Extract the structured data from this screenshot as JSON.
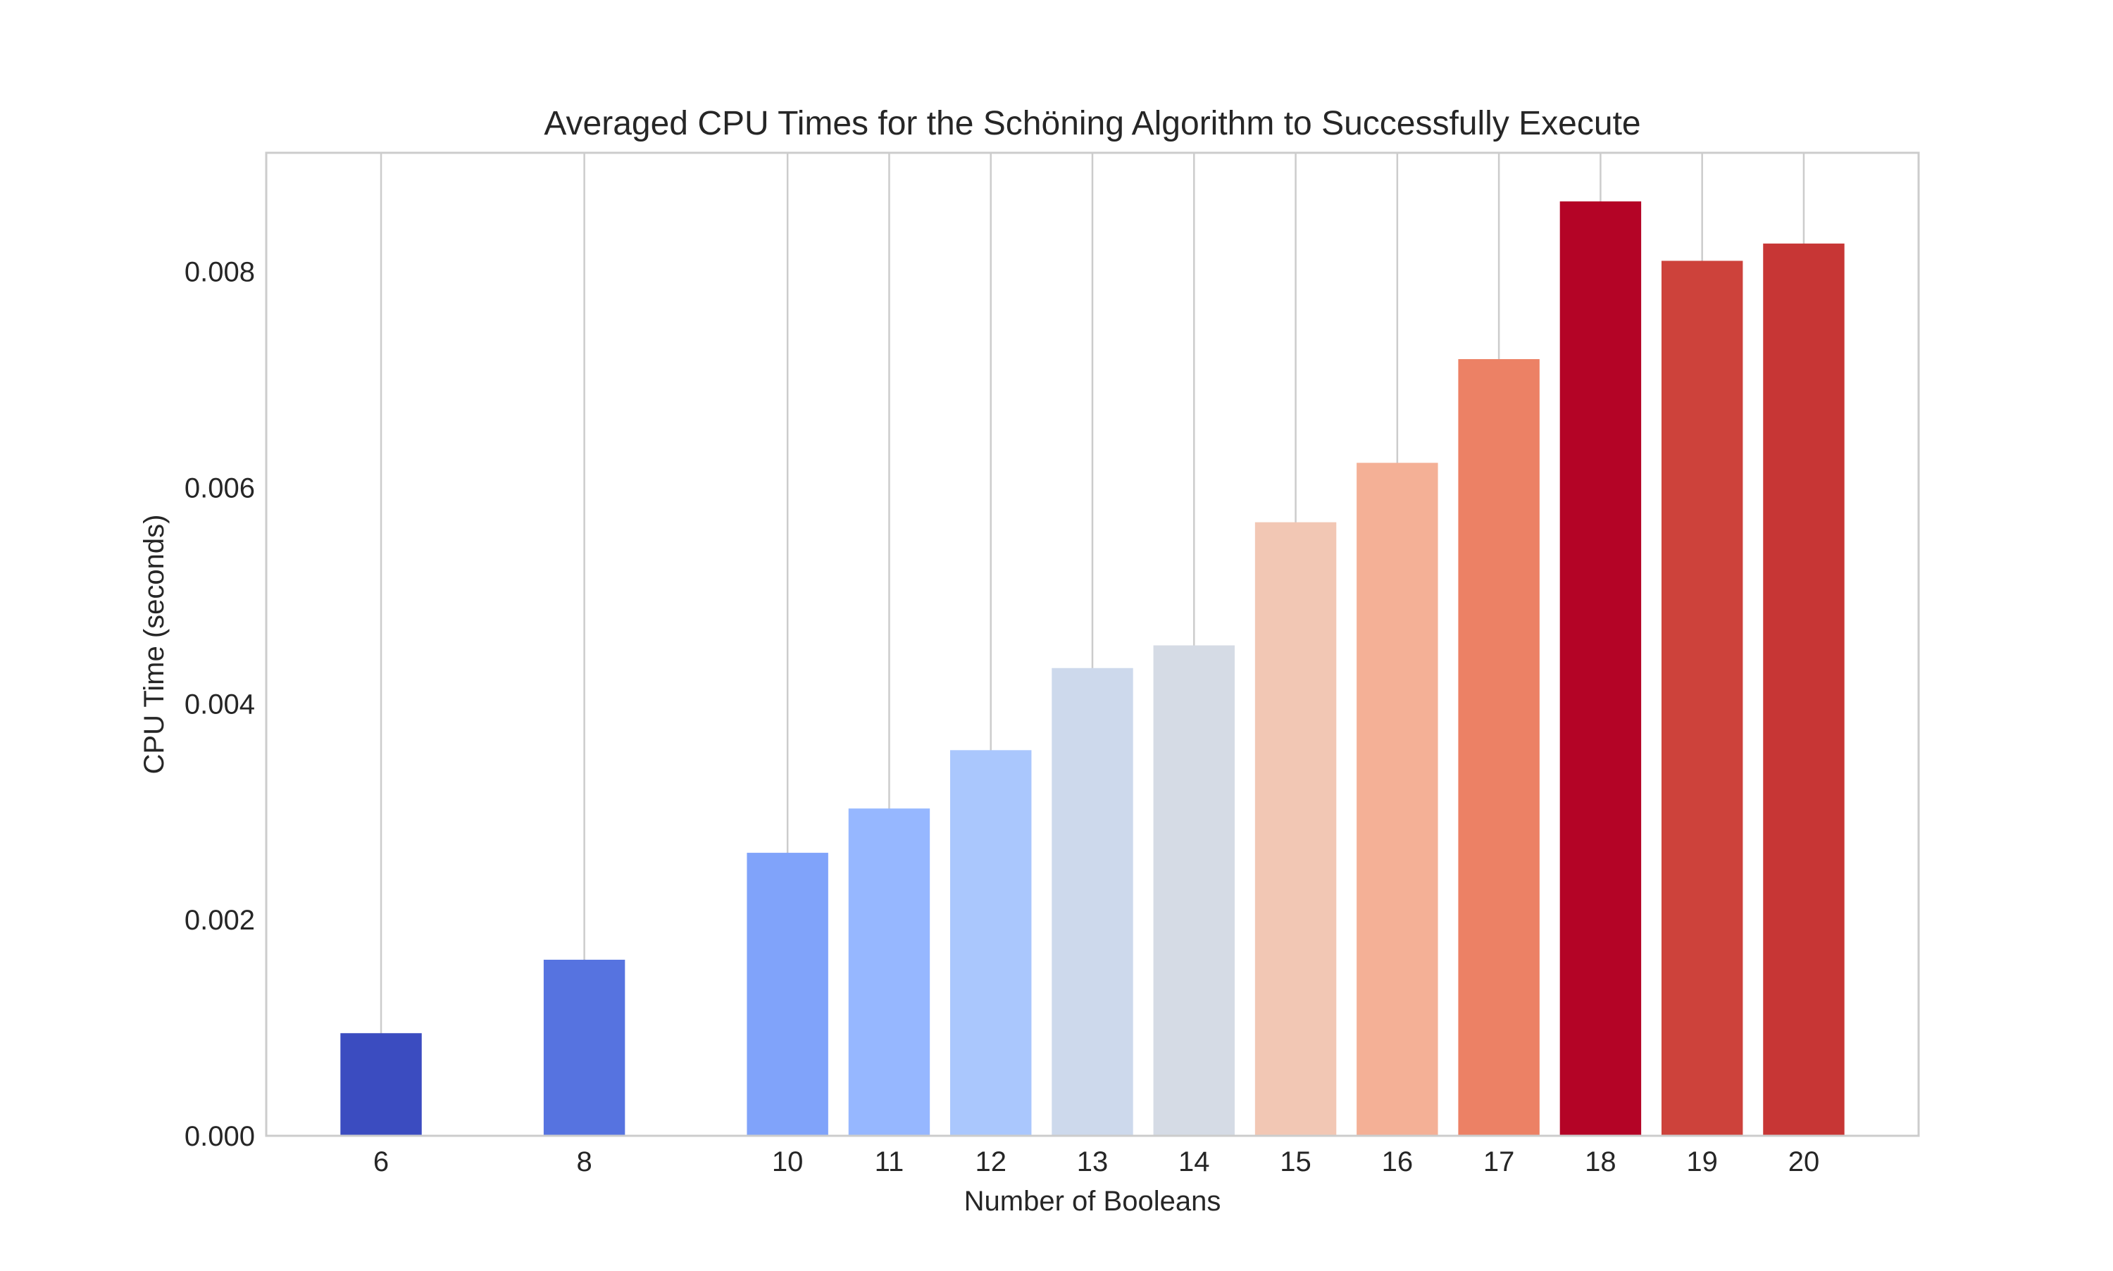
{
  "chart_data": {
    "type": "bar",
    "title": "Averaged CPU Times for the Schöning Algorithm to Successfully Execute",
    "xlabel": "Number of Booleans",
    "ylabel": "CPU Time (seconds)",
    "x": [
      6,
      8,
      10,
      11,
      12,
      13,
      14,
      15,
      16,
      17,
      18,
      19,
      20
    ],
    "x_tick_labels": [
      "6",
      "8",
      "10",
      "11",
      "12",
      "13",
      "14",
      "15",
      "16",
      "17",
      "18",
      "19",
      "20"
    ],
    "values": [
      0.00095,
      0.00163,
      0.00262,
      0.00303,
      0.00357,
      0.00433,
      0.00454,
      0.00568,
      0.00623,
      0.00719,
      0.00865,
      0.0081,
      0.00826
    ],
    "colors": [
      "#3b4cc0",
      "#5673e0",
      "#80a3fa",
      "#96b7ff",
      "#aac7fd",
      "#cdd9ec",
      "#d5dbe5",
      "#f2c7b4",
      "#f4b096",
      "#ec8165",
      "#b40426",
      "#cd423b",
      "#c73635"
    ],
    "xlim": [
      4.87,
      21.13
    ],
    "ylim": [
      0,
      0.0091
    ],
    "y_ticks": [
      0,
      0.002,
      0.004,
      0.006,
      0.008
    ],
    "y_tick_labels": [
      "0.000",
      "0.002",
      "0.004",
      "0.006",
      "0.008"
    ],
    "bar_width": 0.8,
    "grid": "x-axis vertical lines",
    "legend": "none"
  }
}
